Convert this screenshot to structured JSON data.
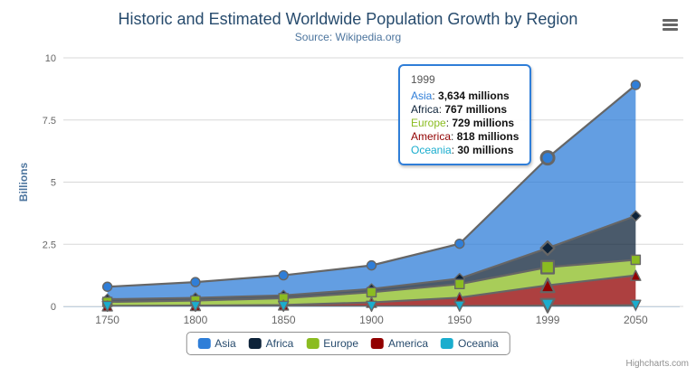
{
  "chart_data": {
    "type": "area",
    "stacking": "normal",
    "title": "Historic and Estimated Worldwide Population Growth by Region",
    "subtitle": "Source: Wikipedia.org",
    "xlabel": "",
    "ylabel": "Billions",
    "categories": [
      "1750",
      "1800",
      "1850",
      "1900",
      "1950",
      "1999",
      "2050"
    ],
    "series": [
      {
        "name": "Asia",
        "color": "#2f7ed8",
        "marker_symbol": "circle",
        "values_millions": [
          502,
          635,
          809,
          947,
          1402,
          3634,
          5268
        ]
      },
      {
        "name": "Africa",
        "color": "#0d233a",
        "marker_symbol": "diamond",
        "values_millions": [
          106,
          107,
          111,
          133,
          221,
          767,
          1766
        ]
      },
      {
        "name": "Europe",
        "color": "#8bbc21",
        "marker_symbol": "square",
        "values_millions": [
          163,
          203,
          276,
          408,
          547,
          729,
          628
        ]
      },
      {
        "name": "America",
        "color": "#910000",
        "marker_symbol": "triangle",
        "values_millions": [
          18,
          31,
          54,
          156,
          339,
          818,
          1201
        ]
      },
      {
        "name": "Oceania",
        "color": "#1aadce",
        "marker_symbol": "triangle-down",
        "values_millions": [
          2,
          2,
          2,
          6,
          13,
          30,
          46
        ]
      }
    ],
    "stack_top_to_bottom": [
      "Asia",
      "Africa",
      "Europe",
      "America",
      "Oceania"
    ],
    "units": "millions",
    "yticks_billions": [
      0,
      2.5,
      5,
      7.5,
      10
    ],
    "ylim_billions": [
      0,
      10
    ],
    "grid": true,
    "legend_position": "bottom",
    "line_color": "#666666",
    "fill_opacity": 0.75,
    "hovered_category": "1999",
    "hovered_index": 5
  },
  "tooltip": {
    "header": "1999",
    "border_color": "#2f7ed8",
    "rows": [
      {
        "label": "Asia",
        "value_text": "3,634 millions",
        "color": "#2f7ed8"
      },
      {
        "label": "Africa",
        "value_text": "767 millions",
        "color": "#0d233a"
      },
      {
        "label": "Europe",
        "value_text": "729 millions",
        "color": "#8bbc21"
      },
      {
        "label": "America",
        "value_text": "818 millions",
        "color": "#910000"
      },
      {
        "label": "Oceania",
        "value_text": "30 millions",
        "color": "#1aadce"
      }
    ]
  },
  "legend": {
    "items": [
      "Asia",
      "Africa",
      "Europe",
      "America",
      "Oceania"
    ]
  },
  "credits": {
    "label": "Highcharts.com"
  },
  "icons": {
    "context_menu": "hamburger-menu-icon"
  },
  "colors": {
    "title": "#274b6d",
    "subtitle": "#4d759e",
    "axis_labels": "#666666",
    "axis_line": "#c0d0e0",
    "gridline": "#d8d8d8",
    "axis_title": "#4d759e",
    "legend_text": "#274b6d",
    "legend_border": "#909090",
    "credits_text": "#909090"
  }
}
